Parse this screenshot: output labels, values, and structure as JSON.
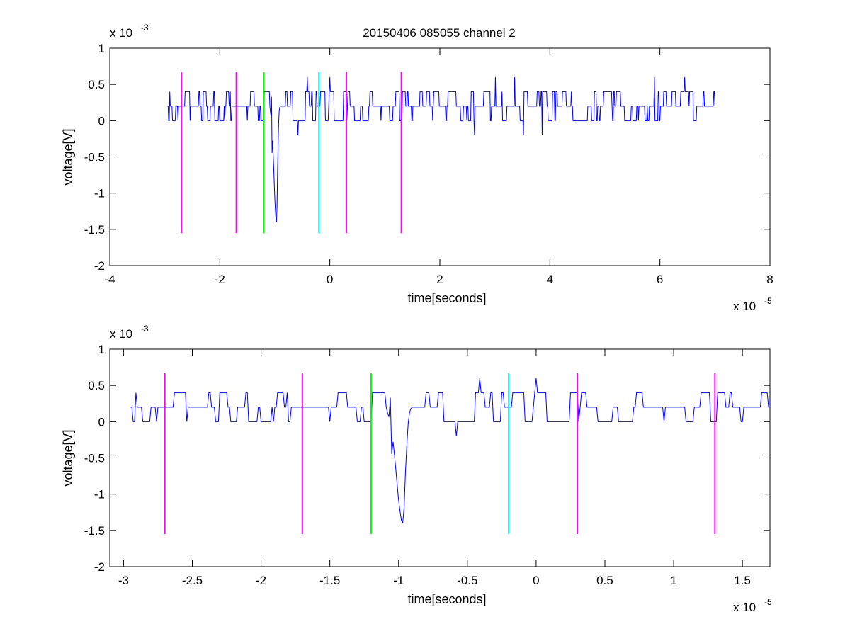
{
  "figure_title": "20150406 085055 channel 2",
  "colors": {
    "signal": "#0000ff",
    "magenta": "#ff00ff",
    "green": "#00ff00",
    "cyan": "#00ffff",
    "axes": "#000000"
  },
  "chart_data": [
    {
      "type": "line",
      "title": "20150406 085055 channel 2",
      "xlabel": "time[seconds]",
      "ylabel": "voltage[V]",
      "x_exponent_label": "x 10",
      "x_exponent": "-5",
      "y_exponent_label": "x 10",
      "y_exponent": "-3",
      "xlim": [
        -4,
        8
      ],
      "ylim": [
        -2,
        1
      ],
      "xticks": [
        -4,
        -2,
        0,
        2,
        4,
        6,
        8
      ],
      "xtick_labels": [
        "-4",
        "-2",
        "0",
        "2",
        "4",
        "6",
        "8"
      ],
      "yticks": [
        -2,
        -1.5,
        -1,
        -0.5,
        0,
        0.5,
        1
      ],
      "ytick_labels": [
        "-2",
        "-1.5",
        "-1",
        "-0.5",
        "0",
        "0.5",
        "1"
      ],
      "grid": false,
      "series": [
        {
          "color": "#0000ff",
          "x_range": [
            -2.95,
            7.0
          ],
          "baseline": 0.2,
          "levels": [
            0,
            0.2,
            0.4
          ],
          "spike": {
            "x": -0.97,
            "min": -1.4
          }
        }
      ],
      "markers": [
        {
          "x": -2.7,
          "color": "#ff00ff",
          "y_range": [
            -1.55,
            0.67
          ]
        },
        {
          "x": -1.7,
          "color": "#ff00ff",
          "y_range": [
            -1.55,
            0.67
          ]
        },
        {
          "x": -1.2,
          "color": "#00ff00",
          "y_range": [
            -1.55,
            0.67
          ]
        },
        {
          "x": -0.2,
          "color": "#00ffff",
          "y_range": [
            -1.55,
            0.67
          ]
        },
        {
          "x": 0.3,
          "color": "#ff00ff",
          "y_range": [
            -1.55,
            0.67
          ]
        },
        {
          "x": 1.3,
          "color": "#ff00ff",
          "y_range": [
            -1.55,
            0.67
          ]
        }
      ]
    },
    {
      "type": "line",
      "title": "",
      "xlabel": "time[seconds]",
      "ylabel": "voltage[V]",
      "x_exponent_label": "x 10",
      "x_exponent": "-5",
      "y_exponent_label": "x 10",
      "y_exponent": "-3",
      "xlim": [
        -3.1,
        1.7
      ],
      "ylim": [
        -2,
        1
      ],
      "xticks": [
        -3,
        -2.5,
        -2,
        -1.5,
        -1,
        -0.5,
        0,
        0.5,
        1,
        1.5
      ],
      "xtick_labels": [
        "-3",
        "-2.5",
        "-2",
        "-1.5",
        "-1",
        "-0.5",
        "0",
        "0.5",
        "1",
        "1.5"
      ],
      "yticks": [
        -2,
        -1.5,
        -1,
        -0.5,
        0,
        0.5,
        1
      ],
      "ytick_labels": [
        "-2",
        "-1.5",
        "-1",
        "-0.5",
        "0",
        "0.5",
        "1"
      ],
      "grid": false,
      "series": [
        {
          "color": "#0000ff",
          "x_range": [
            -2.95,
            1.7
          ],
          "baseline": 0.2,
          "levels": [
            0,
            0.2,
            0.4
          ],
          "spike": {
            "x": -0.97,
            "min": -1.4
          }
        }
      ],
      "markers": [
        {
          "x": -2.7,
          "color": "#ff00ff",
          "y_range": [
            -1.55,
            0.67
          ]
        },
        {
          "x": -1.7,
          "color": "#ff00ff",
          "y_range": [
            -1.55,
            0.67
          ]
        },
        {
          "x": -1.2,
          "color": "#00ff00",
          "y_range": [
            -1.55,
            0.67
          ]
        },
        {
          "x": -0.2,
          "color": "#00ffff",
          "y_range": [
            -1.55,
            0.67
          ]
        },
        {
          "x": 0.3,
          "color": "#ff00ff",
          "y_range": [
            -1.55,
            0.67
          ]
        },
        {
          "x": 1.3,
          "color": "#ff00ff",
          "y_range": [
            -1.55,
            0.67
          ]
        }
      ]
    }
  ]
}
